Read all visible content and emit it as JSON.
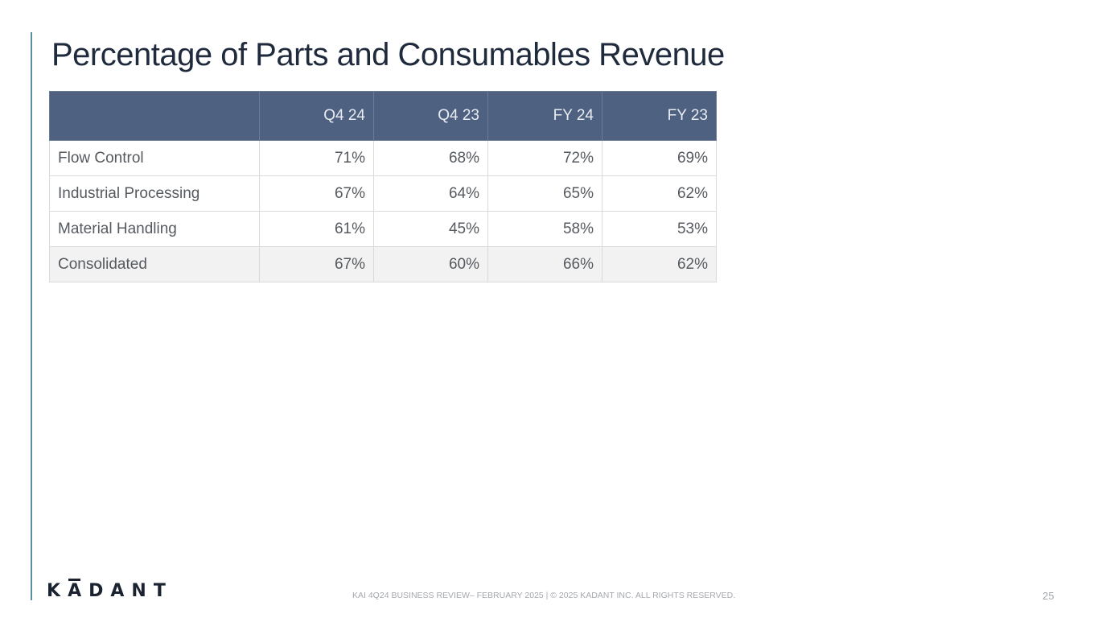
{
  "title": "Percentage of Parts and Consumables Revenue",
  "table": {
    "headers": [
      "",
      "Q4 24",
      "Q4 23",
      "FY 24",
      "FY 23"
    ],
    "rows": [
      {
        "label": "Flow Control",
        "values": [
          "71%",
          "68%",
          "72%",
          "69%"
        ]
      },
      {
        "label": "Industrial Processing",
        "values": [
          "67%",
          "64%",
          "65%",
          "62%"
        ]
      },
      {
        "label": "Material Handling",
        "values": [
          "61%",
          "45%",
          "58%",
          "53%"
        ]
      }
    ],
    "total": {
      "label": "Consolidated",
      "values": [
        "67%",
        "60%",
        "66%",
        "62%"
      ]
    }
  },
  "logo": {
    "letters": [
      "K",
      "A",
      "D",
      "A",
      "N",
      "T"
    ],
    "alt": "KADANT"
  },
  "footer": {
    "text": "KAI 4Q24 BUSINESS REVIEW– FEBRUARY 2025 | © 2025 KADANT INC. ALL RIGHTS RESERVED.",
    "page_number": "25"
  },
  "colors": {
    "header_bg": "#4f6180",
    "accent_rule": "#5a8fa3",
    "total_row_bg": "#f2f2f2"
  }
}
